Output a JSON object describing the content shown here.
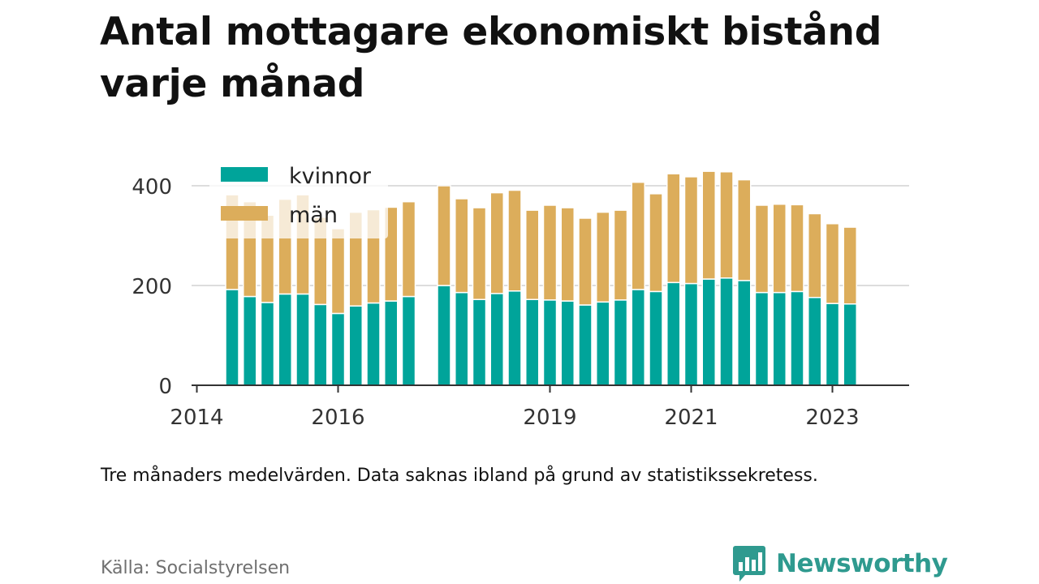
{
  "title": "Antal mottagare ekonomiskt bistånd varje månad",
  "note": "Tre månaders medelvärden. Data saknas ibland på grund av statistikssekretess.",
  "source": "Källa: Socialstyrelsen",
  "brand": "Newsworthy",
  "colors": {
    "kvinnor": "#00a49a",
    "man": "#dcad5b",
    "grid": "#dddddd",
    "axis": "#333333",
    "brand": "#2f9a8f"
  },
  "chart_data": {
    "type": "bar",
    "stacked": true,
    "yticks": [
      0,
      200,
      400
    ],
    "ylim": [
      0,
      430
    ],
    "xticks": [
      {
        "label": "2014",
        "x": 0
      },
      {
        "label": "2016",
        "x": 8
      },
      {
        "label": "2019",
        "x": 20
      },
      {
        "label": "2021",
        "x": 28
      },
      {
        "label": "2023",
        "x": 36
      }
    ],
    "x": [
      2,
      3,
      4,
      5,
      6,
      7,
      8,
      9,
      10,
      11,
      12,
      14,
      15,
      16,
      17,
      18,
      19,
      20,
      21,
      22,
      23,
      24,
      25,
      26,
      27,
      28,
      29,
      30,
      31,
      32,
      33,
      34,
      35,
      36,
      37
    ],
    "legend": {
      "position": "top-left"
    },
    "series": [
      {
        "name": "kvinnor",
        "values": [
          192,
          178,
          166,
          183,
          183,
          162,
          144,
          159,
          165,
          169,
          178,
          200,
          186,
          172,
          184,
          189,
          172,
          171,
          169,
          161,
          167,
          171,
          192,
          188,
          206,
          204,
          213,
          215,
          210,
          186,
          186,
          188,
          176,
          164,
          163
        ]
      },
      {
        "name": "män",
        "values": [
          190,
          190,
          175,
          190,
          199,
          175,
          170,
          188,
          187,
          188,
          190,
          200,
          188,
          184,
          202,
          202,
          179,
          190,
          187,
          174,
          180,
          180,
          215,
          196,
          218,
          214,
          216,
          213,
          202,
          175,
          177,
          174,
          168,
          160,
          154
        ]
      }
    ]
  }
}
